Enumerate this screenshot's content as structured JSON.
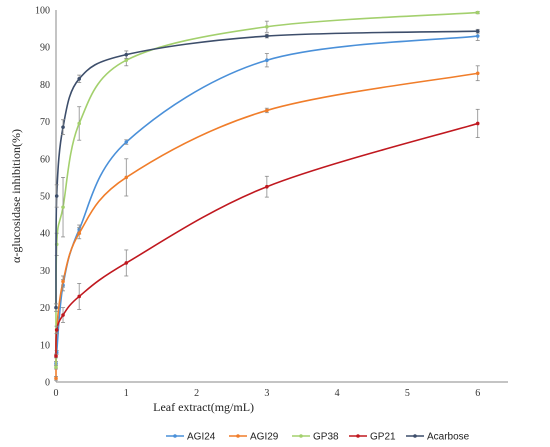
{
  "chart_data": {
    "type": "line",
    "title": "",
    "xlabel": "Leaf extract(mg/mL)",
    "ylabel": "α-glucosidase inhibition(%)",
    "xlim": [
      0,
      7
    ],
    "ylim": [
      0,
      100
    ],
    "xticks": [
      0,
      1,
      2,
      3,
      4,
      5,
      6
    ],
    "yticks": [
      0,
      10,
      20,
      30,
      40,
      50,
      60,
      70,
      80,
      90,
      100
    ],
    "grid": false,
    "legend": "bottom",
    "series": [
      {
        "name": "AGI24",
        "color": "#4a90d9",
        "x": [
          0,
          0.01,
          0.1,
          0.33,
          1,
          3,
          6
        ],
        "y": [
          5,
          8,
          26,
          41,
          64.5,
          86.5,
          93
        ],
        "err": [
          0.5,
          0.5,
          1.5,
          1.2,
          0.6,
          1.8,
          1.2
        ]
      },
      {
        "name": "AGI29",
        "color": "#f07d2a",
        "x": [
          0,
          0.01,
          0.1,
          0.33,
          1,
          3,
          6
        ],
        "y": [
          1,
          14,
          27,
          40,
          55,
          73,
          83
        ],
        "err": [
          0.5,
          1,
          1.5,
          1.5,
          5,
          0.6,
          2
        ]
      },
      {
        "name": "GP38",
        "color": "#a3d06d",
        "x": [
          0,
          0.01,
          0.1,
          0.33,
          1,
          3,
          6
        ],
        "y": [
          4,
          37,
          47,
          69.5,
          86.5,
          95.5,
          99.3
        ],
        "err": [
          0.5,
          3,
          8,
          4.5,
          1.5,
          1.5,
          0.3
        ]
      },
      {
        "name": "GP21",
        "color": "#c0181f",
        "x": [
          0,
          0.01,
          0.1,
          0.33,
          1,
          3,
          6
        ],
        "y": [
          7,
          14,
          18,
          23,
          32,
          52.5,
          69.5
        ],
        "err": [
          0.5,
          1,
          2,
          3.5,
          3.5,
          2.8,
          3.8
        ]
      },
      {
        "name": "Acarbose",
        "color": "#3d4e6b",
        "x": [
          0,
          0.01,
          0.1,
          0.33,
          1,
          3,
          6
        ],
        "y": [
          20,
          50,
          68.5,
          81.5,
          88,
          93,
          94.3
        ],
        "err": [
          1,
          3,
          2,
          1,
          1,
          0.5,
          0.5
        ]
      }
    ]
  }
}
